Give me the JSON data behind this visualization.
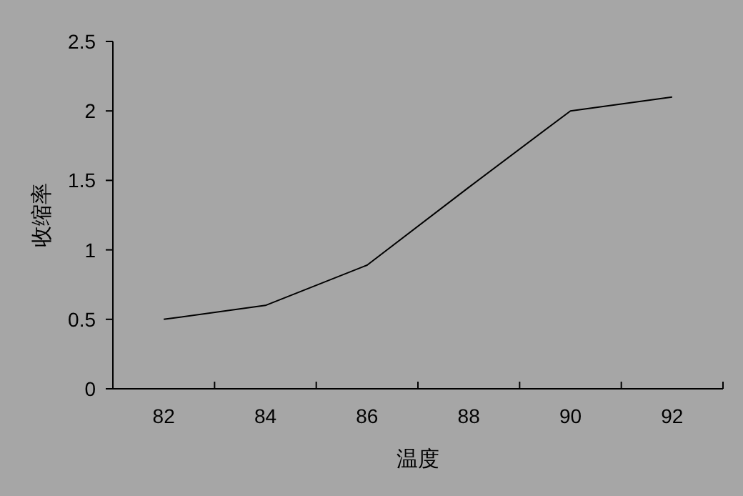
{
  "chart_data": {
    "type": "line",
    "xlabel": "温度",
    "ylabel": "收缩率",
    "categories": [
      "82",
      "84",
      "86",
      "88",
      "90",
      "92"
    ],
    "series": [
      {
        "color": "#000000",
        "values": [
          0.5,
          0.6,
          0.89,
          1.45,
          2.0,
          2.1
        ]
      }
    ],
    "ylim": [
      0,
      2.5
    ],
    "yticks": [
      0,
      0.5,
      1,
      1.5,
      2,
      2.5
    ],
    "grid": false,
    "marker": "none",
    "line_style": "solid"
  }
}
